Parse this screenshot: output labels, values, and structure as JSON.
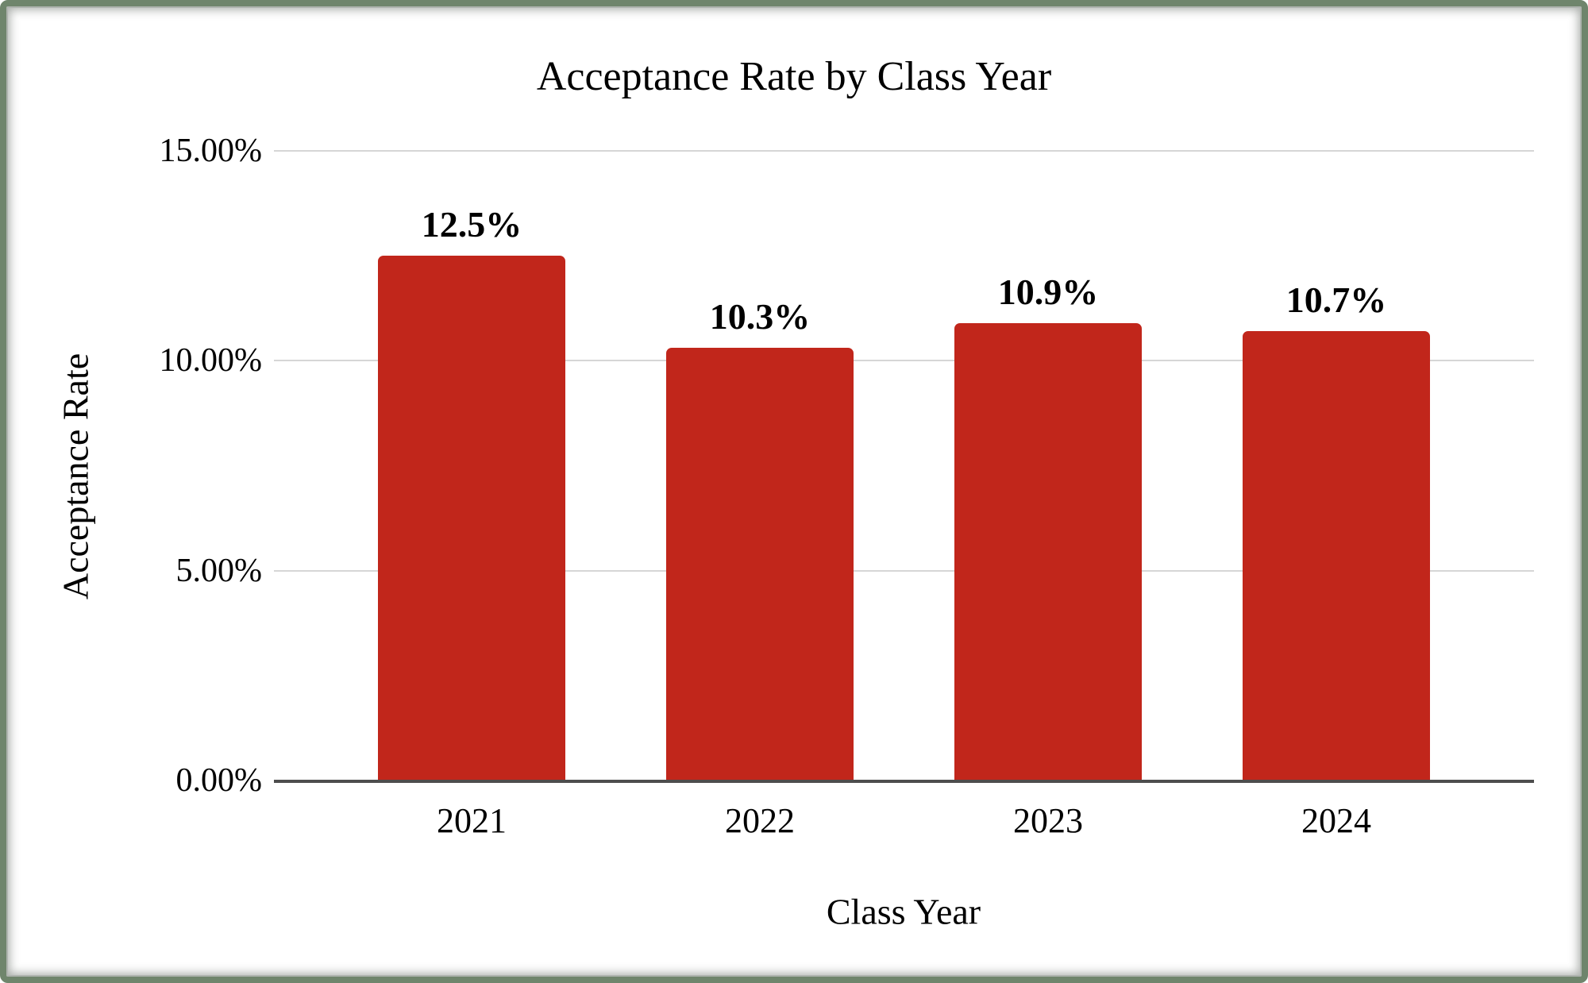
{
  "frame": {
    "border_color": "#6f856c"
  },
  "chart_data": {
    "type": "bar",
    "title": "Acceptance Rate by Class Year",
    "xlabel": "Class Year",
    "ylabel": "Acceptance Rate",
    "categories": [
      "2021",
      "2022",
      "2023",
      "2024"
    ],
    "values": [
      12.5,
      10.3,
      10.9,
      10.7
    ],
    "value_labels": [
      "12.5%",
      "10.3%",
      "10.9%",
      "10.7%"
    ],
    "ylim": [
      0,
      15
    ],
    "yticks": [
      0,
      5,
      10,
      15
    ],
    "ytick_labels": [
      "0.00%",
      "5.00%",
      "10.00%",
      "15.00%"
    ],
    "grid": true,
    "legend": "none",
    "bar_color": "#c1261b",
    "gridline_color": "#d6d6d6",
    "axis_line_color": "#4d4d4d",
    "text_color": "#000000"
  }
}
